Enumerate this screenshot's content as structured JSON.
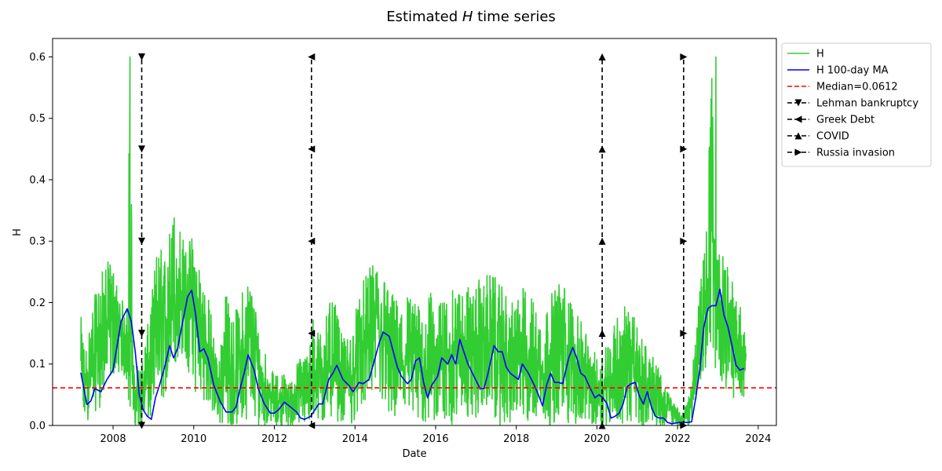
{
  "chart_data": {
    "type": "line",
    "title_prefix": "Estimated ",
    "title_var": "H",
    "title_suffix": " time series",
    "xlabel": "Date",
    "ylabel": "H",
    "xlim": [
      2006.5,
      2024.45
    ],
    "ylim": [
      0,
      0.63
    ],
    "x_ticks": [
      2008,
      2010,
      2012,
      2014,
      2016,
      2018,
      2020,
      2022,
      2024
    ],
    "x_tick_labels": [
      "2008",
      "2010",
      "2012",
      "2014",
      "2016",
      "2018",
      "2020",
      "2022",
      "2024"
    ],
    "y_ticks": [
      0.0,
      0.1,
      0.2,
      0.3,
      0.4,
      0.5,
      0.6
    ],
    "y_tick_labels": [
      "0.0",
      "0.1",
      "0.2",
      "0.3",
      "0.4",
      "0.5",
      "0.6"
    ],
    "grid": false,
    "legend_placement": "outside-top-right",
    "median": {
      "label": "Median=0.0612",
      "value": 0.0612,
      "color": "#ff0000"
    },
    "series": [
      {
        "name": "H",
        "color": "#32cd32",
        "style": "noisy-envelope",
        "x": [
          2007.2,
          2007.3,
          2007.5,
          2007.7,
          2007.9,
          2008.0,
          2008.2,
          2008.35,
          2008.42,
          2008.5,
          2008.7,
          2008.9,
          2009.1,
          2009.3,
          2009.5,
          2009.65,
          2009.8,
          2010.0,
          2010.2,
          2010.4,
          2010.6,
          2010.8,
          2011.0,
          2011.2,
          2011.4,
          2011.6,
          2011.8,
          2012.0,
          2012.2,
          2012.4,
          2012.6,
          2012.8,
          2012.95,
          2013.1,
          2013.3,
          2013.5,
          2013.7,
          2013.9,
          2014.1,
          2014.3,
          2014.5,
          2014.7,
          2014.9,
          2015.1,
          2015.3,
          2015.5,
          2015.7,
          2015.9,
          2016.1,
          2016.3,
          2016.5,
          2016.7,
          2016.9,
          2017.1,
          2017.3,
          2017.5,
          2017.7,
          2017.9,
          2018.1,
          2018.3,
          2018.5,
          2018.7,
          2018.9,
          2019.1,
          2019.3,
          2019.5,
          2019.7,
          2019.9,
          2020.1,
          2020.3,
          2020.5,
          2020.7,
          2020.9,
          2021.1,
          2021.3,
          2021.5,
          2021.7,
          2021.9,
          2022.1,
          2022.3,
          2022.5,
          2022.7,
          2022.85,
          2022.95,
          2023.1,
          2023.3,
          2023.5,
          2023.7
        ],
        "upper": [
          0.18,
          0.12,
          0.2,
          0.25,
          0.27,
          0.26,
          0.2,
          0.22,
          0.6,
          0.1,
          0.1,
          0.18,
          0.3,
          0.28,
          0.36,
          0.33,
          0.29,
          0.32,
          0.25,
          0.2,
          0.1,
          0.22,
          0.18,
          0.22,
          0.25,
          0.17,
          0.12,
          0.08,
          0.09,
          0.07,
          0.11,
          0.12,
          0.18,
          0.15,
          0.2,
          0.2,
          0.14,
          0.15,
          0.22,
          0.25,
          0.27,
          0.25,
          0.22,
          0.2,
          0.22,
          0.2,
          0.19,
          0.22,
          0.2,
          0.22,
          0.22,
          0.24,
          0.22,
          0.24,
          0.25,
          0.24,
          0.22,
          0.2,
          0.23,
          0.22,
          0.2,
          0.18,
          0.22,
          0.24,
          0.22,
          0.18,
          0.16,
          0.12,
          0.12,
          0.15,
          0.18,
          0.2,
          0.18,
          0.15,
          0.12,
          0.1,
          0.06,
          0.04,
          0.02,
          0.05,
          0.2,
          0.3,
          0.6,
          0.3,
          0.28,
          0.25,
          0.2,
          0.18
        ],
        "lower": [
          0.0,
          0.0,
          0.02,
          0.03,
          0.06,
          0.08,
          0.09,
          0.06,
          0.0,
          0.0,
          0.0,
          0.0,
          0.02,
          0.05,
          0.08,
          0.12,
          0.1,
          0.05,
          0.05,
          0.02,
          0.0,
          0.0,
          0.0,
          0.0,
          0.02,
          0.0,
          0.0,
          0.0,
          0.0,
          0.0,
          0.0,
          0.0,
          0.0,
          0.0,
          0.0,
          0.01,
          0.0,
          0.0,
          0.02,
          0.03,
          0.05,
          0.03,
          0.0,
          0.0,
          0.0,
          0.0,
          0.0,
          0.0,
          0.0,
          0.0,
          0.0,
          0.02,
          0.0,
          0.02,
          0.03,
          0.0,
          0.0,
          0.0,
          0.0,
          0.0,
          0.0,
          0.0,
          0.0,
          0.0,
          0.0,
          0.0,
          0.0,
          0.0,
          0.0,
          0.0,
          0.0,
          0.0,
          0.0,
          0.0,
          0.0,
          0.0,
          0.0,
          0.0,
          0.0,
          0.0,
          0.05,
          0.08,
          0.1,
          0.08,
          0.07,
          0.05,
          0.04,
          0.05
        ]
      },
      {
        "name": "H 100-day MA",
        "color": "#0000ff",
        "x": [
          2007.2,
          2007.35,
          2007.45,
          2007.55,
          2007.7,
          2007.85,
          2008.0,
          2008.1,
          2008.2,
          2008.35,
          2008.45,
          2008.55,
          2008.65,
          2008.75,
          2008.85,
          2008.95,
          2009.05,
          2009.15,
          2009.3,
          2009.4,
          2009.5,
          2009.6,
          2009.7,
          2009.85,
          2009.95,
          2010.05,
          2010.15,
          2010.25,
          2010.35,
          2010.5,
          2010.65,
          2010.8,
          2010.95,
          2011.05,
          2011.15,
          2011.25,
          2011.35,
          2011.5,
          2011.6,
          2011.75,
          2011.9,
          2012.0,
          2012.1,
          2012.25,
          2012.4,
          2012.55,
          2012.65,
          2012.75,
          2012.9,
          2013.0,
          2013.1,
          2013.2,
          2013.35,
          2013.45,
          2013.55,
          2013.7,
          2013.85,
          2013.95,
          2014.1,
          2014.2,
          2014.35,
          2014.5,
          2014.6,
          2014.7,
          2014.85,
          2014.95,
          2015.05,
          2015.15,
          2015.3,
          2015.4,
          2015.5,
          2015.6,
          2015.7,
          2015.8,
          2015.9,
          2016.05,
          2016.15,
          2016.3,
          2016.4,
          2016.5,
          2016.6,
          2016.7,
          2016.8,
          2016.95,
          2017.1,
          2017.2,
          2017.3,
          2017.45,
          2017.55,
          2017.65,
          2017.75,
          2017.85,
          2017.95,
          2018.05,
          2018.15,
          2018.3,
          2018.45,
          2018.55,
          2018.65,
          2018.75,
          2018.85,
          2018.95,
          2019.05,
          2019.15,
          2019.3,
          2019.4,
          2019.5,
          2019.6,
          2019.7,
          2019.8,
          2019.95,
          2020.05,
          2020.15,
          2020.25,
          2020.35,
          2020.45,
          2020.55,
          2020.65,
          2020.75,
          2020.85,
          2020.95,
          2021.05,
          2021.15,
          2021.25,
          2021.35,
          2021.45,
          2021.55,
          2021.65,
          2021.75,
          2021.85,
          2021.95,
          2022.05,
          2022.15,
          2022.25,
          2022.35,
          2022.45,
          2022.55,
          2022.65,
          2022.75,
          2022.85,
          2022.95,
          2023.05,
          2023.15,
          2023.25,
          2023.35,
          2023.45,
          2023.55,
          2023.65
        ],
        "y": [
          0.086,
          0.034,
          0.04,
          0.06,
          0.055,
          0.075,
          0.09,
          0.13,
          0.17,
          0.19,
          0.17,
          0.12,
          0.05,
          0.025,
          0.015,
          0.01,
          0.045,
          0.065,
          0.1,
          0.13,
          0.11,
          0.125,
          0.16,
          0.21,
          0.22,
          0.18,
          0.12,
          0.125,
          0.11,
          0.065,
          0.04,
          0.022,
          0.022,
          0.03,
          0.06,
          0.085,
          0.115,
          0.09,
          0.06,
          0.035,
          0.02,
          0.02,
          0.025,
          0.038,
          0.03,
          0.022,
          0.012,
          0.01,
          0.015,
          0.025,
          0.035,
          0.035,
          0.075,
          0.085,
          0.098,
          0.075,
          0.065,
          0.055,
          0.07,
          0.068,
          0.075,
          0.11,
          0.135,
          0.152,
          0.145,
          0.12,
          0.095,
          0.08,
          0.068,
          0.075,
          0.105,
          0.11,
          0.07,
          0.045,
          0.065,
          0.08,
          0.11,
          0.1,
          0.115,
          0.1,
          0.14,
          0.12,
          0.1,
          0.08,
          0.06,
          0.06,
          0.085,
          0.13,
          0.12,
          0.12,
          0.095,
          0.085,
          0.08,
          0.075,
          0.1,
          0.085,
          0.065,
          0.05,
          0.032,
          0.065,
          0.085,
          0.07,
          0.07,
          0.068,
          0.11,
          0.127,
          0.11,
          0.085,
          0.08,
          0.065,
          0.045,
          0.05,
          0.045,
          0.035,
          0.012,
          0.015,
          0.02,
          0.035,
          0.063,
          0.068,
          0.07,
          0.048,
          0.035,
          0.055,
          0.03,
          0.015,
          0.012,
          0.012,
          0.005,
          0.003,
          0.004,
          0.005,
          0.005,
          0.005,
          0.006,
          0.045,
          0.09,
          0.16,
          0.19,
          0.195,
          0.195,
          0.222,
          0.18,
          0.16,
          0.13,
          0.098,
          0.09,
          0.093
        ]
      }
    ],
    "events": [
      {
        "name": "Lehman bankruptcy",
        "x": 2008.71,
        "marker": "triangle-down"
      },
      {
        "name": "Greek Debt",
        "x": 2012.92,
        "marker": "triangle-left"
      },
      {
        "name": "COVID",
        "x": 2020.13,
        "marker": "triangle-up"
      },
      {
        "name": "Russia invasion",
        "x": 2022.15,
        "marker": "triangle-right"
      }
    ],
    "event_marker_y": [
      0.0,
      0.15,
      0.3,
      0.45,
      0.6
    ]
  }
}
